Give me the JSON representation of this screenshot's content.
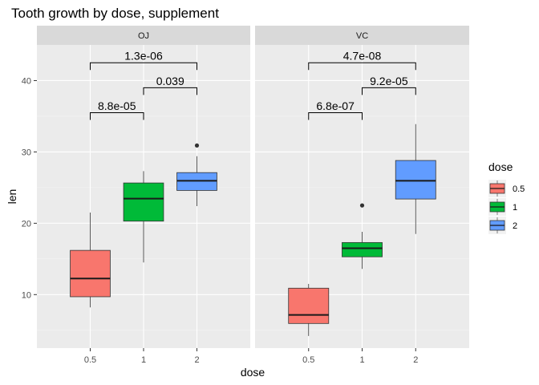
{
  "chart_data": {
    "type": "boxplot",
    "title": "Tooth growth by dose, supplement",
    "xlabel": "dose",
    "ylabel": "len",
    "ylim": [
      2.5,
      45
    ],
    "yticks": [
      10,
      20,
      30,
      40
    ],
    "categories": [
      "0.5",
      "1",
      "2"
    ],
    "legend": {
      "title": "dose",
      "position": "right",
      "entries": [
        {
          "label": "0.5",
          "color": "#F8766D"
        },
        {
          "label": "1",
          "color": "#00BA38"
        },
        {
          "label": "2",
          "color": "#619CFF"
        }
      ]
    },
    "panels": [
      {
        "strip": "OJ",
        "boxes": [
          {
            "dose": "0.5",
            "min": 8.2,
            "q1": 9.7,
            "median": 12.25,
            "q3": 16.2,
            "max": 21.5,
            "outliers": []
          },
          {
            "dose": "1",
            "min": 14.5,
            "q1": 20.3,
            "median": 23.45,
            "q3": 25.65,
            "max": 27.3,
            "outliers": []
          },
          {
            "dose": "2",
            "min": 22.4,
            "q1": 24.6,
            "median": 25.95,
            "q3": 27.1,
            "max": 29.4,
            "outliers": [
              30.9
            ]
          }
        ],
        "comparisons": [
          {
            "from": "0.5",
            "to": "1",
            "p": "8.8e-05",
            "y": 35.5
          },
          {
            "from": "1",
            "to": "2",
            "p": "0.039",
            "y": 39.0
          },
          {
            "from": "0.5",
            "to": "2",
            "p": "1.3e-06",
            "y": 42.5
          }
        ]
      },
      {
        "strip": "VC",
        "boxes": [
          {
            "dose": "0.5",
            "min": 4.2,
            "q1": 5.95,
            "median": 7.15,
            "q3": 10.9,
            "max": 11.5,
            "outliers": []
          },
          {
            "dose": "1",
            "min": 13.6,
            "q1": 15.3,
            "median": 16.5,
            "q3": 17.3,
            "max": 18.8,
            "outliers": [
              22.5
            ]
          },
          {
            "dose": "2",
            "min": 18.5,
            "q1": 23.4,
            "median": 25.95,
            "q3": 28.8,
            "max": 33.9,
            "outliers": []
          }
        ],
        "comparisons": [
          {
            "from": "0.5",
            "to": "1",
            "p": "6.8e-07",
            "y": 35.5
          },
          {
            "from": "1",
            "to": "2",
            "p": "9.2e-05",
            "y": 39.0
          },
          {
            "from": "0.5",
            "to": "2",
            "p": "4.7e-08",
            "y": 42.5
          }
        ]
      }
    ]
  }
}
